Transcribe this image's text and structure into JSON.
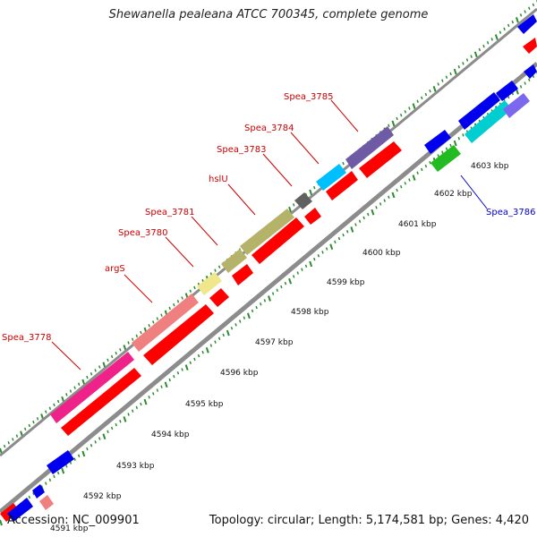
{
  "title": "Shewanella pealeana ATCC 700345, complete genome",
  "footer": {
    "accession": "Accession: NC_009901",
    "summary": "Topology: circular; Length: 5,174,581 bp; Genes: 4,420"
  },
  "colors": {
    "backbone": "#8c8c8c",
    "tick": "#2e8b2e",
    "forward_label": "#cc0000",
    "reverse_label": "#0000cc",
    "cds_reverse": "#ff0000",
    "cds_forward": "#0000ee"
  },
  "scale_labels": [
    "4591 kbp",
    "4592 kbp",
    "4593 kbp",
    "4594 kbp",
    "4595 kbp",
    "4596 kbp",
    "4597 kbp",
    "4598 kbp",
    "4599 kbp",
    "4600 kbp",
    "4601 kbp",
    "4602 kbp",
    "4603 kbp"
  ],
  "gene_labels": [
    {
      "text": "Spea_3778",
      "strand": "forward"
    },
    {
      "text": "argS",
      "strand": "forward"
    },
    {
      "text": "Spea_3780",
      "strand": "forward"
    },
    {
      "text": "Spea_3781",
      "strand": "forward"
    },
    {
      "text": "hslU",
      "strand": "forward"
    },
    {
      "text": "Spea_3783",
      "strand": "forward"
    },
    {
      "text": "Spea_3784",
      "strand": "forward"
    },
    {
      "text": "Spea_3785",
      "strand": "forward"
    },
    {
      "text": "Spea_3786",
      "strand": "reverse"
    }
  ]
}
